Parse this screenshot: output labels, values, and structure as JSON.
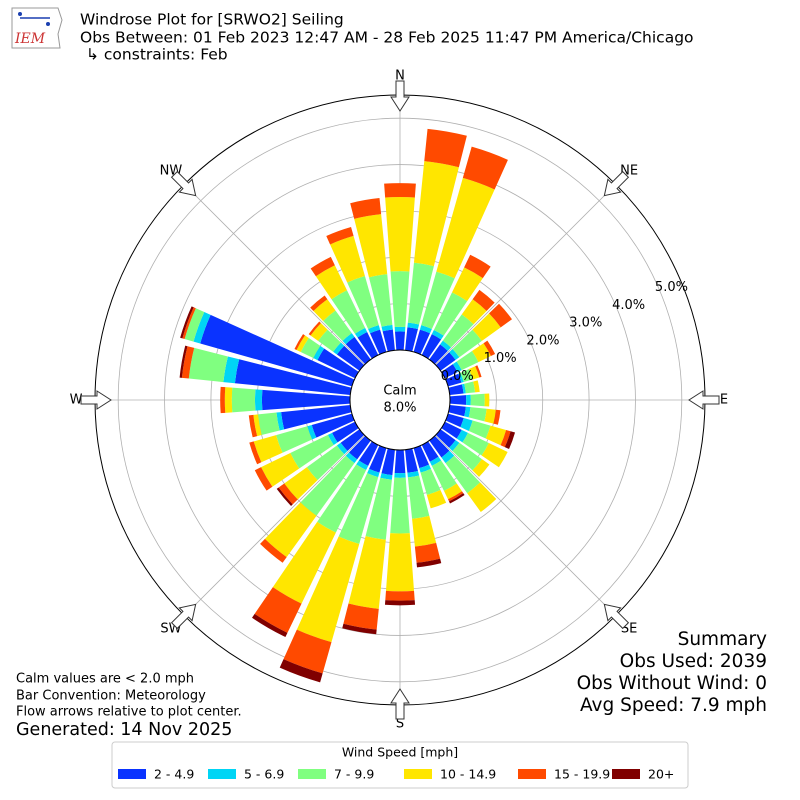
{
  "chart_data": {
    "type": "windrose",
    "title": "Windrose Plot for [SRWO2] Seiling",
    "subtitle": "Obs Between: 01 Feb 2023 12:47 AM - 28 Feb 2025 11:47 PM America/Chicago",
    "constraints": "↳ constraints: Feb",
    "logo_text": "IEM",
    "calm_label": "Calm",
    "calm_value": 8.0,
    "calm_value_label": "8.0%",
    "compass": [
      "N",
      "NE",
      "E",
      "SE",
      "S",
      "SW",
      "W",
      "NW"
    ],
    "x": [
      0,
      10,
      20,
      30,
      40,
      50,
      60,
      70,
      80,
      90,
      100,
      110,
      120,
      130,
      140,
      150,
      160,
      170,
      180,
      190,
      200,
      210,
      220,
      230,
      240,
      250,
      260,
      270,
      280,
      290,
      300,
      310,
      320,
      330,
      340,
      350
    ],
    "ylim": [
      0,
      5.5
    ],
    "yticks": [
      {
        "value": 0,
        "label": "0.0%"
      },
      {
        "value": 1,
        "label": "1.0%"
      },
      {
        "value": 2,
        "label": "2.0%"
      },
      {
        "value": 3,
        "label": "3.0%"
      },
      {
        "value": 4,
        "label": "4.0%"
      },
      {
        "value": 5,
        "label": "5.0%"
      }
    ],
    "grid": true,
    "legend_title": "Wind Speed [mph]",
    "series": [
      {
        "name": "2 - 4.9",
        "color": "#0a33ff",
        "values": [
          0.4,
          0.5,
          0.5,
          0.5,
          0.4,
          0.4,
          0.3,
          0.3,
          0.3,
          0.35,
          0.35,
          0.35,
          0.4,
          0.4,
          0.45,
          0.4,
          0.45,
          0.5,
          0.5,
          0.55,
          0.55,
          0.5,
          0.5,
          0.5,
          0.55,
          0.9,
          1.5,
          1.9,
          2.5,
          3.4,
          0.9,
          0.6,
          0.6,
          0.55,
          0.5,
          0.45
        ]
      },
      {
        "name": "5 - 6.9",
        "color": "#00d5f5",
        "values": [
          0.1,
          0.1,
          0.1,
          0.1,
          0.1,
          0.1,
          0.1,
          0.05,
          0.05,
          0.1,
          0.1,
          0.2,
          0.15,
          0.1,
          0.15,
          0.1,
          0.1,
          0.1,
          0.1,
          0.1,
          0.1,
          0.1,
          0.1,
          0.1,
          0.1,
          0.1,
          0.1,
          0.15,
          0.25,
          0.15,
          0.1,
          0.1,
          0.1,
          0.1,
          0.1,
          0.1
        ]
      },
      {
        "name": "7 - 9.9",
        "color": "#80ff80",
        "values": [
          1.2,
          1.3,
          1.2,
          0.9,
          0.7,
          0.6,
          0.4,
          0.2,
          0.2,
          0.3,
          0.35,
          0.4,
          0.5,
          0.6,
          0.8,
          0.6,
          0.5,
          0.9,
          1.2,
          1.3,
          1.5,
          1.5,
          1.4,
          0.8,
          0.9,
          0.7,
          0.4,
          0.5,
          0.75,
          0.2,
          0.3,
          0.4,
          0.6,
          0.9,
          1.1,
          1.1
        ]
      },
      {
        "name": "10 - 14.9",
        "color": "#ffe600",
        "values": [
          1.6,
          2.2,
          2.1,
          0.6,
          0.4,
          0.5,
          0.3,
          0.15,
          0.1,
          0.1,
          0.2,
          0.35,
          0.45,
          0.2,
          0.5,
          0.2,
          0.3,
          0.6,
          1.25,
          1.5,
          2.2,
          1.7,
          1.1,
          0.6,
          0.7,
          0.5,
          0.1,
          0.15,
          0,
          0,
          0.1,
          0.2,
          0.3,
          0.6,
          0.9,
          1.3
        ]
      },
      {
        "name": "15 - 19.9",
        "color": "#ff4a00",
        "values": [
          0.3,
          0.7,
          0.7,
          0.3,
          0.25,
          0.3,
          0.1,
          0.05,
          0,
          0,
          0.1,
          0.1,
          0,
          0,
          0,
          0.05,
          0,
          0.35,
          0.2,
          0.45,
          0.7,
          0.7,
          0.15,
          0.15,
          0.15,
          0.1,
          0.1,
          0.1,
          0.15,
          0.05,
          0.05,
          0.05,
          0.1,
          0.2,
          0.2,
          0.35
        ]
      },
      {
        "name": "20+",
        "color": "#800000",
        "values": [
          0,
          0,
          0,
          0,
          0,
          0,
          0,
          0,
          0,
          0,
          0,
          0.1,
          0,
          0,
          0,
          0.05,
          0,
          0.1,
          0.1,
          0.1,
          0.2,
          0.1,
          0,
          0.05,
          0,
          0,
          0,
          0,
          0.05,
          0.05,
          0,
          0,
          0,
          0,
          0,
          0
        ]
      }
    ],
    "notes": [
      "Calm values are < 2.0 mph",
      "Bar Convention: Meteorology",
      "Flow arrows relative to plot center."
    ],
    "generated": "Generated: 14 Nov 2025",
    "summary": [
      "Summary",
      "Obs Used: 2039",
      "Obs Without Wind: 0",
      "Avg Speed: 7.9 mph"
    ]
  }
}
